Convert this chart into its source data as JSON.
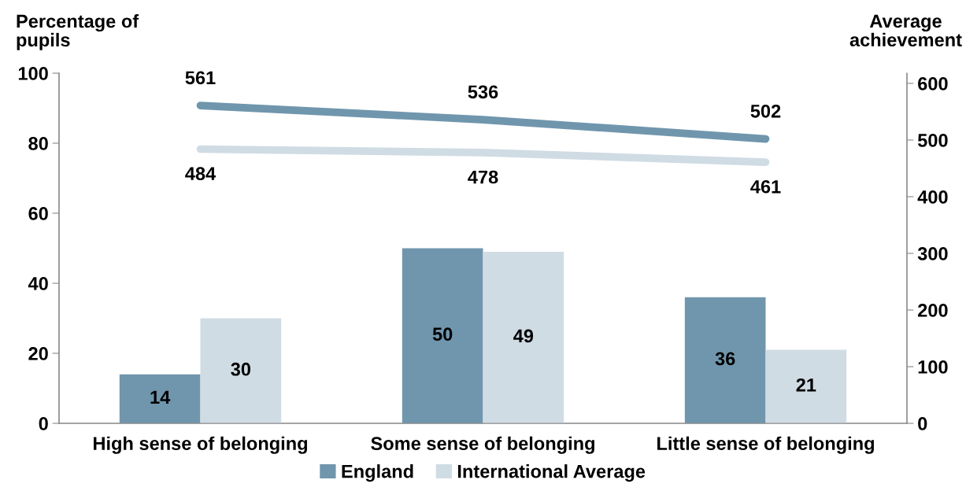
{
  "chart_data": {
    "type": "bar",
    "ylabel": "Percentage of\npupils",
    "y2label": "Average\nachievement",
    "categories": [
      "High sense of belonging",
      "Some sense of belonging",
      "Little sense of belonging"
    ],
    "series": [
      {
        "name": "England",
        "color": "#7096ad",
        "values": [
          14,
          50,
          36
        ]
      },
      {
        "name": "International Average",
        "color": "#d0dce4",
        "values": [
          30,
          49,
          21
        ]
      },
      {
        "type": "line",
        "axis": "y2",
        "color": "#7096ad",
        "values": [
          561,
          536,
          502
        ]
      },
      {
        "type": "line",
        "axis": "y2",
        "color": "#d0dce4",
        "values": [
          484,
          478,
          461
        ]
      }
    ],
    "ylim": [
      0,
      100
    ],
    "yticks": [
      0,
      20,
      40,
      60,
      80,
      100
    ],
    "y2lim": [
      0,
      618
    ],
    "y2ticks": [
      0,
      100,
      200,
      300,
      400,
      500,
      600
    ],
    "data_labels": true,
    "legend": "bottom",
    "grid": false,
    "marker": "none",
    "line_style": "solid"
  }
}
